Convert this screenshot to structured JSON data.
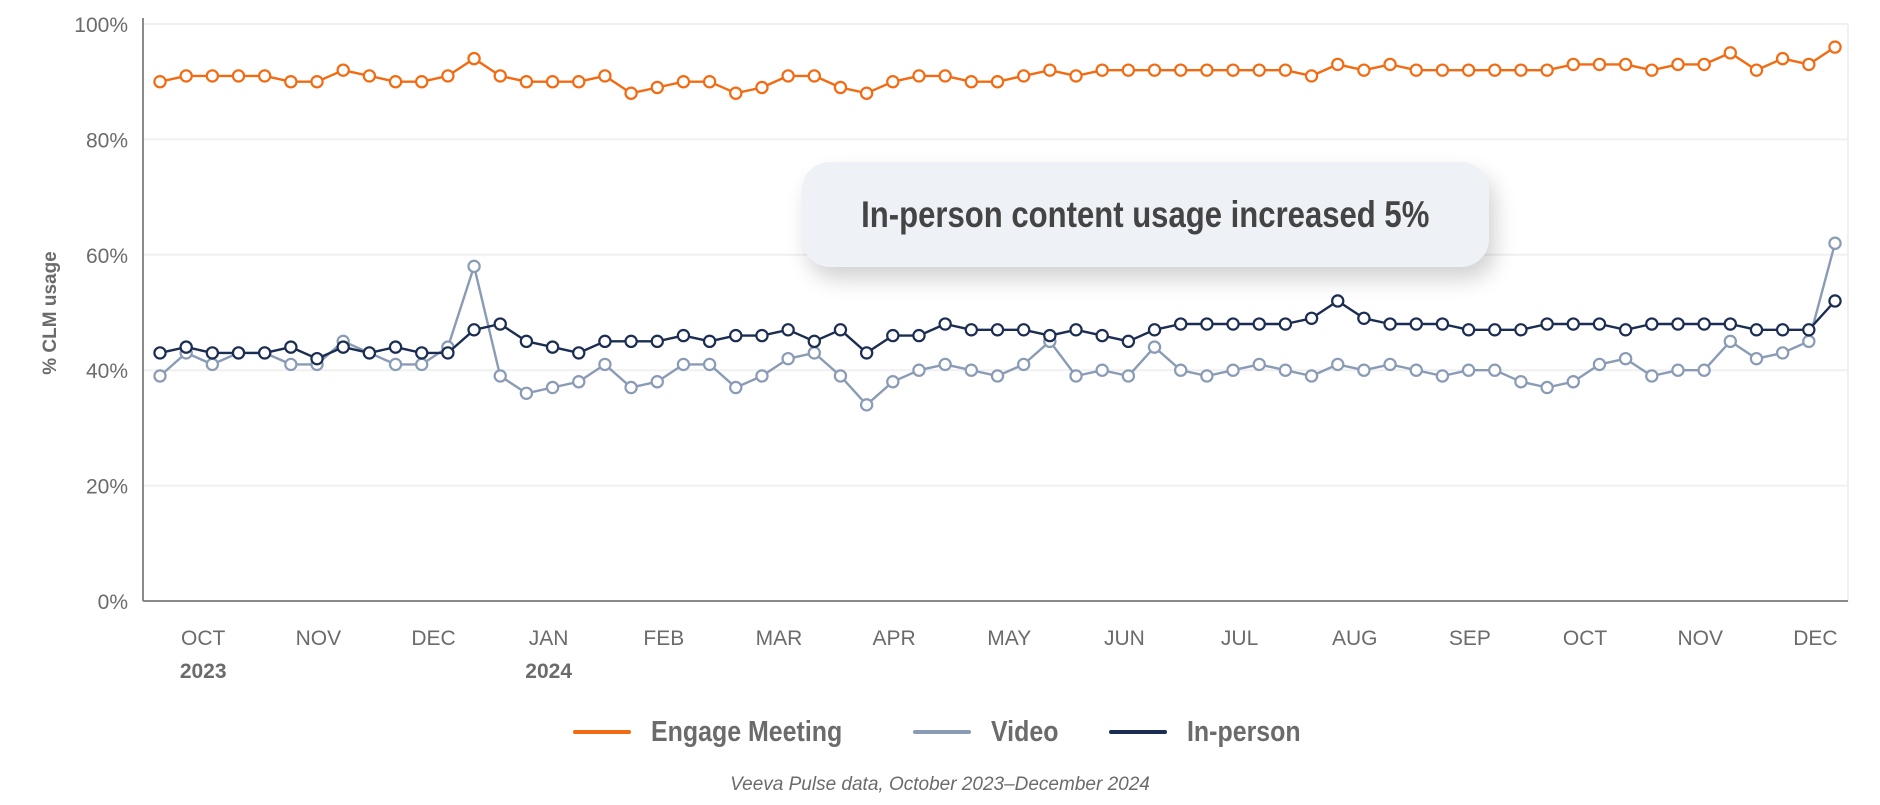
{
  "chart_data": {
    "type": "line",
    "title": "",
    "xlabel": "",
    "ylabel": "% CLM usage",
    "ylim": [
      0,
      100
    ],
    "y_ticks": [
      "0%",
      "20%",
      "40%",
      "60%",
      "80%",
      "100%"
    ],
    "y_tick_values": [
      0,
      20,
      40,
      60,
      80,
      100
    ],
    "grid": true,
    "legend_position": "bottom",
    "x_ticks": [
      {
        "label": "OCT",
        "year": "2023"
      },
      {
        "label": "NOV",
        "year": ""
      },
      {
        "label": "DEC",
        "year": ""
      },
      {
        "label": "JAN",
        "year": "2024"
      },
      {
        "label": "FEB",
        "year": ""
      },
      {
        "label": "MAR",
        "year": ""
      },
      {
        "label": "APR",
        "year": ""
      },
      {
        "label": "MAY",
        "year": ""
      },
      {
        "label": "JUN",
        "year": ""
      },
      {
        "label": "JUL",
        "year": ""
      },
      {
        "label": "AUG",
        "year": ""
      },
      {
        "label": "SEP",
        "year": ""
      },
      {
        "label": "OCT",
        "year": ""
      },
      {
        "label": "NOV",
        "year": ""
      },
      {
        "label": "DEC",
        "year": ""
      }
    ],
    "x_frequency": "weekly",
    "series": [
      {
        "name": "Engage Meeting",
        "color": "#f26b12",
        "values": [
          90,
          91,
          91,
          91,
          91,
          90,
          90,
          92,
          91,
          90,
          90,
          91,
          94,
          91,
          90,
          90,
          90,
          91,
          88,
          89,
          90,
          90,
          88,
          89,
          91,
          91,
          89,
          88,
          90,
          91,
          91,
          90,
          90,
          91,
          92,
          91,
          92,
          92,
          92,
          92,
          92,
          92,
          92,
          92,
          91,
          93,
          92,
          93,
          92,
          92,
          92,
          92,
          92,
          92,
          93,
          93,
          93,
          92,
          93,
          93,
          95,
          92,
          94,
          93,
          96
        ]
      },
      {
        "name": "Video",
        "color": "#8a9bb6",
        "values": [
          39,
          43,
          41,
          43,
          43,
          41,
          41,
          45,
          43,
          41,
          41,
          44,
          58,
          39,
          36,
          37,
          38,
          41,
          37,
          38,
          41,
          41,
          37,
          39,
          42,
          43,
          39,
          34,
          38,
          40,
          41,
          40,
          39,
          41,
          45,
          39,
          40,
          39,
          44,
          40,
          39,
          40,
          41,
          40,
          39,
          41,
          40,
          41,
          40,
          39,
          40,
          40,
          38,
          37,
          38,
          41,
          42,
          39,
          40,
          40,
          45,
          42,
          43,
          45,
          62
        ]
      },
      {
        "name": "In-person",
        "color": "#1b2d52",
        "values": [
          43,
          44,
          43,
          43,
          43,
          44,
          42,
          44,
          43,
          44,
          43,
          43,
          47,
          48,
          45,
          44,
          43,
          45,
          45,
          45,
          46,
          45,
          46,
          46,
          47,
          45,
          47,
          43,
          46,
          46,
          48,
          47,
          47,
          47,
          46,
          47,
          46,
          45,
          47,
          48,
          48,
          48,
          48,
          48,
          49,
          52,
          49,
          48,
          48,
          48,
          47,
          47,
          47,
          48,
          48,
          48,
          47,
          48,
          48,
          48,
          48,
          47,
          47,
          47,
          52
        ]
      }
    ],
    "annotation": "In-person content usage increased 5%",
    "source": "Veeva Pulse data, October 2023–December 2024"
  }
}
